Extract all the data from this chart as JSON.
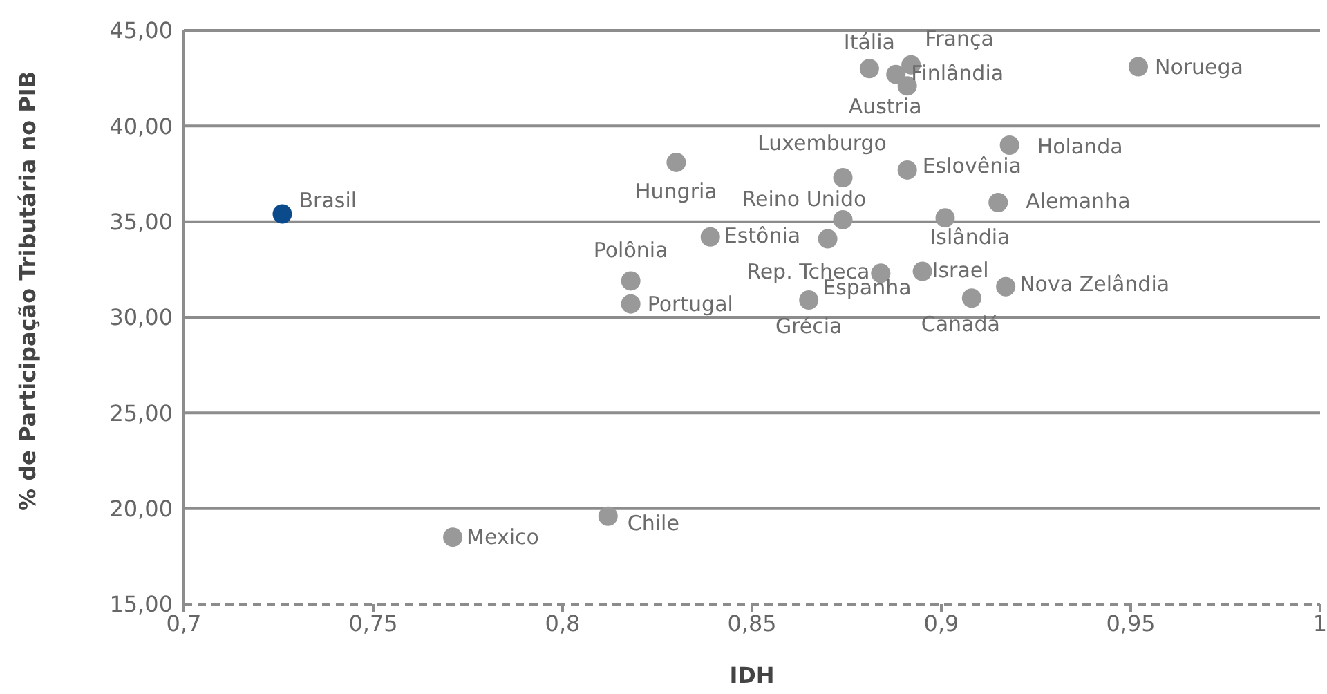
{
  "chart_data": {
    "type": "scatter",
    "xlabel": "IDH",
    "ylabel": "% de Participação Tributária no PIB",
    "xlim": [
      0.7,
      1
    ],
    "xticks": [
      {
        "value": 0.7,
        "label": "0,7"
      },
      {
        "value": 0.75,
        "label": "0,75"
      },
      {
        "value": 0.8,
        "label": "0,8"
      },
      {
        "value": 0.85,
        "label": "0,85"
      },
      {
        "value": 0.9,
        "label": "0,9"
      },
      {
        "value": 0.95,
        "label": "0,95"
      },
      {
        "value": 1,
        "label": "1"
      }
    ],
    "ylim": [
      15,
      45
    ],
    "yticks": [
      {
        "value": 15,
        "label": "15,00"
      },
      {
        "value": 20,
        "label": "20,00"
      },
      {
        "value": 25,
        "label": "25,00"
      },
      {
        "value": 30,
        "label": "30,00"
      },
      {
        "value": 35,
        "label": "35,00"
      },
      {
        "value": 40,
        "label": "40,00"
      },
      {
        "value": 45,
        "label": "45,00"
      }
    ],
    "grid": "y",
    "legend": false,
    "marker": "circle",
    "series": [
      {
        "color": "#0b4a8b",
        "x": [
          0.726
        ],
        "values": [
          35.4
        ]
      },
      {
        "color": "#999999",
        "x": [
          0.771,
          0.812,
          0.83,
          0.818,
          0.818,
          0.839,
          0.87,
          0.874,
          0.874,
          0.884,
          0.895,
          0.865,
          0.891,
          0.901,
          0.908,
          0.917,
          0.915,
          0.918,
          0.881,
          0.892,
          0.888,
          0.891,
          0.952
        ],
        "values": [
          18.5,
          19.6,
          38.1,
          31.9,
          30.7,
          34.2,
          34.1,
          35.1,
          37.3,
          32.3,
          32.4,
          30.9,
          37.7,
          35.2,
          31.0,
          31.6,
          36.0,
          39.0,
          43.0,
          43.2,
          42.7,
          42.1,
          43.1
        ]
      }
    ],
    "annotations": [
      {
        "text": "Brasil",
        "x": 0.726,
        "y": 35.4
      },
      {
        "text": "Mexico",
        "x": 0.771,
        "y": 18.5
      },
      {
        "text": "Chile",
        "x": 0.812,
        "y": 19.6
      },
      {
        "text": "Hungria",
        "x": 0.83,
        "y": 38.1
      },
      {
        "text": "Polônia",
        "x": 0.818,
        "y": 31.9
      },
      {
        "text": "Portugal",
        "x": 0.818,
        "y": 30.7
      },
      {
        "text": "Estônia",
        "x": 0.839,
        "y": 34.2
      },
      {
        "text": "Reino Unido",
        "x": 0.874,
        "y": 35.1
      },
      {
        "text": "Luxemburgo",
        "x": 0.874,
        "y": 37.3
      },
      {
        "text": "Rep. Tcheca",
        "x": 0.884,
        "y": 32.3
      },
      {
        "text": "Israel",
        "x": 0.895,
        "y": 32.4
      },
      {
        "text": "Espanha",
        "x": 0.865,
        "y": 30.9
      },
      {
        "text": "Grécia",
        "x": 0.865,
        "y": 30.9
      },
      {
        "text": "Eslovênia",
        "x": 0.891,
        "y": 37.7
      },
      {
        "text": "Islândia",
        "x": 0.901,
        "y": 35.2
      },
      {
        "text": "Canadá",
        "x": 0.908,
        "y": 31.0
      },
      {
        "text": "Nova Zelândia",
        "x": 0.917,
        "y": 31.6
      },
      {
        "text": "Alemanha",
        "x": 0.915,
        "y": 36.0
      },
      {
        "text": "Holanda",
        "x": 0.918,
        "y": 39.0
      },
      {
        "text": "Itália",
        "x": 0.881,
        "y": 43.0
      },
      {
        "text": "França",
        "x": 0.892,
        "y": 43.2
      },
      {
        "text": "Finlândia",
        "x": 0.888,
        "y": 42.7
      },
      {
        "text": "Austria",
        "x": 0.891,
        "y": 42.1
      },
      {
        "text": "Noruega",
        "x": 0.952,
        "y": 43.1
      }
    ]
  }
}
